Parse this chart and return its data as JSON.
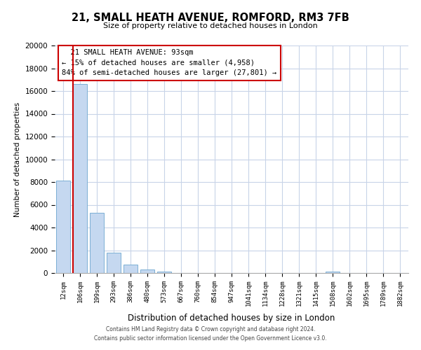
{
  "title": "21, SMALL HEATH AVENUE, ROMFORD, RM3 7FB",
  "subtitle": "Size of property relative to detached houses in London",
  "xlabel": "Distribution of detached houses by size in London",
  "ylabel": "Number of detached properties",
  "categories": [
    "12sqm",
    "106sqm",
    "199sqm",
    "293sqm",
    "386sqm",
    "480sqm",
    "573sqm",
    "667sqm",
    "760sqm",
    "854sqm",
    "947sqm",
    "1041sqm",
    "1134sqm",
    "1228sqm",
    "1321sqm",
    "1415sqm",
    "1508sqm",
    "1602sqm",
    "1695sqm",
    "1789sqm",
    "1882sqm"
  ],
  "values": [
    8100,
    16600,
    5300,
    1800,
    750,
    300,
    130,
    0,
    0,
    0,
    0,
    0,
    0,
    0,
    0,
    0,
    100,
    0,
    0,
    0,
    0
  ],
  "bar_color": "#c5d8f0",
  "bar_edgecolor": "#7bafd4",
  "background_color": "#ffffff",
  "grid_color": "#c8d4e8",
  "annotation_line1": "  21 SMALL HEATH AVENUE: 93sqm  ",
  "annotation_line2": "← 15% of detached houses are smaller (4,958)",
  "annotation_line3": "84% of semi-detached houses are larger (27,801) →",
  "annotation_box_edgecolor": "#cc0000",
  "redline_x": 0.59,
  "ylim": [
    0,
    20000
  ],
  "yticks": [
    0,
    2000,
    4000,
    6000,
    8000,
    10000,
    12000,
    14000,
    16000,
    18000,
    20000
  ],
  "footer_line1": "Contains HM Land Registry data © Crown copyright and database right 2024.",
  "footer_line2": "Contains public sector information licensed under the Open Government Licence v3.0."
}
